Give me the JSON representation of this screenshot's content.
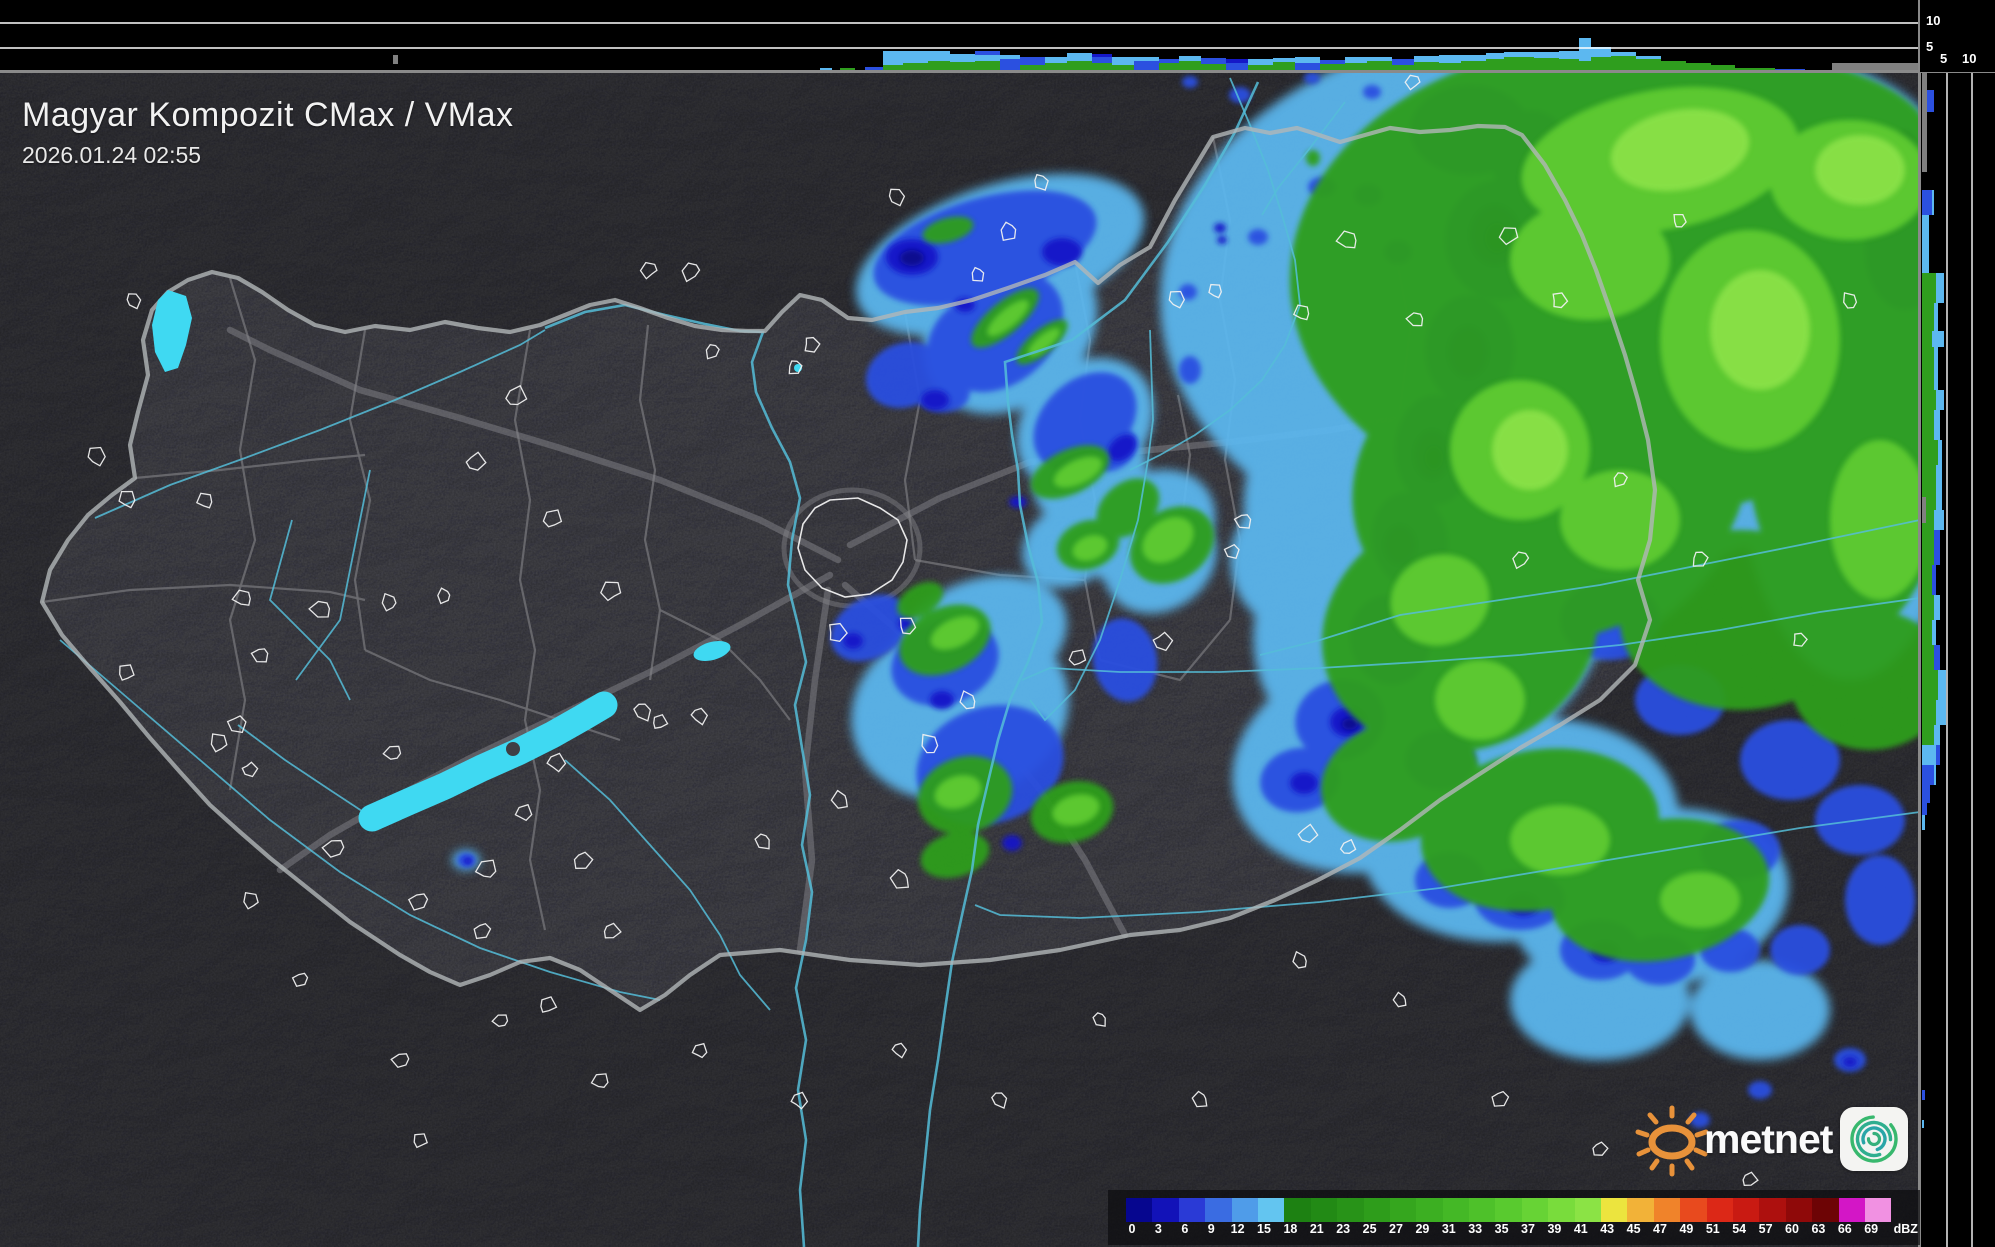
{
  "header": {
    "title": "Magyar Kompozit CMax / VMax",
    "timestamp": "2026.01.24 02:55"
  },
  "legend": {
    "unit": "dBZ",
    "labels": [
      "0",
      "3",
      "6",
      "9",
      "12",
      "15",
      "18",
      "21",
      "23",
      "25",
      "27",
      "29",
      "31",
      "33",
      "35",
      "37",
      "39",
      "41",
      "43",
      "45",
      "47",
      "49",
      "51",
      "54",
      "57",
      "60",
      "63",
      "66",
      "69"
    ],
    "colors": [
      "#06068f",
      "#1212b8",
      "#2a3ad6",
      "#3a6ce2",
      "#4f9ce9",
      "#63c5f0",
      "#1d8112",
      "#228a15",
      "#289318",
      "#2e9d1b",
      "#35a61e",
      "#3caf22",
      "#44b826",
      "#4ec12a",
      "#59ca2f",
      "#67d335",
      "#79dc3c",
      "#8be345",
      "#ece43e",
      "#f2b238",
      "#f0832a",
      "#e84a1e",
      "#dc2817",
      "#c91a12",
      "#ad100e",
      "#8f0909",
      "#6d0405",
      "#d316c6",
      "#f191e2"
    ],
    "overflow_color": "#97e9e2"
  },
  "profile_axes": {
    "top_strip": {
      "tick_10": "10",
      "tick_5": "5"
    },
    "right_strip": {
      "tick_5": "5",
      "tick_10": "10"
    }
  },
  "watermark": {
    "brand": "metnet"
  },
  "map_colors": {
    "light_blue": "#5cb8f0",
    "blue": "#2b50e0",
    "dark_blue": "#1518c8",
    "navy": "#0a0a8c",
    "green": "#2f9e1e",
    "bright_green": "#5ecb31",
    "pale_green": "#8ce24a",
    "lake": "#3fd9f2",
    "river": "#55bdd8",
    "border": "#b2b6b8",
    "county": "#6b6b70",
    "road": "#84848a",
    "town": "#f0f0f0",
    "nodata": "#808080",
    "grid_white": "#ffffff"
  }
}
